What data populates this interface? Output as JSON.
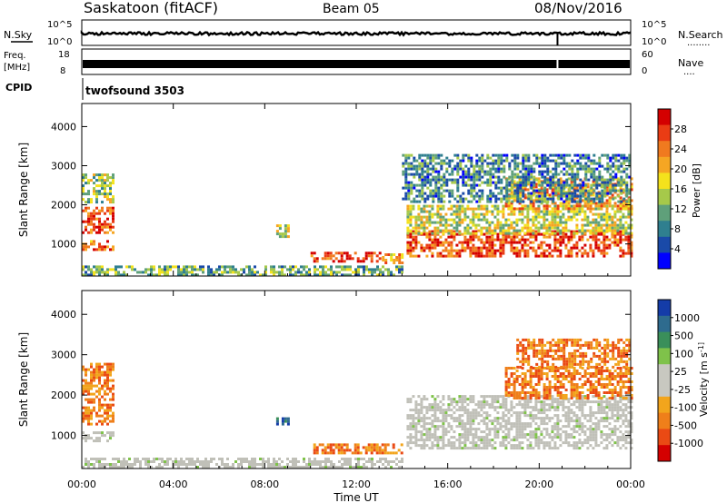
{
  "header": {
    "station": "Saskatoon (fitACF)",
    "beam": "Beam 05",
    "date": "08/Nov/2016"
  },
  "strips": {
    "noise": {
      "left_label": "N.Sky",
      "right_label": "N.Search",
      "left_ticks": [
        "10^5",
        "10^0"
      ],
      "right_ticks": [
        "10^5",
        "10^0"
      ],
      "right_legend": "........"
    },
    "freq": {
      "left_label_1": "Freq.",
      "left_label_2": "[MHz]",
      "right_label": "Nave",
      "left_ticks": [
        "18",
        "8"
      ],
      "right_ticks": [
        "60",
        "0"
      ],
      "right_legend": "...."
    },
    "cpid": {
      "label": "CPID",
      "text": "twofsound 3503"
    }
  },
  "colors": {
    "power_scale": [
      "#0000ff",
      "#1a4aa8",
      "#2f7f8f",
      "#5fa07a",
      "#a6c94a",
      "#f4e21c",
      "#f5a623",
      "#f07a1f",
      "#ea3c14",
      "#d40000"
    ],
    "velocity_scale": [
      "#143ca8",
      "#2e6b8e",
      "#3a8f5a",
      "#7fc24a",
      "#c8c8c0",
      "#c8c8c0",
      "#f2a51c",
      "#ef7f1a",
      "#ea4a14",
      "#d40000"
    ],
    "ground_scatter": "#c0c0b8"
  },
  "chart_data": [
    {
      "type": "heatmap",
      "title": "Power",
      "xlabel": "Time UT",
      "ylabel": "Slant Range [km]",
      "colorbar_label": "Power [dB]",
      "colorbar_ticks": [
        "28",
        "24",
        "20",
        "16",
        "12",
        "8",
        "4"
      ],
      "colorbar_range": [
        0,
        30
      ],
      "x_ticks": [
        "00:00",
        "04:00",
        "08:00",
        "12:00",
        "16:00",
        "20:00",
        "00:00"
      ],
      "xlim_hours": [
        0,
        24
      ],
      "y_ticks": [
        "4000",
        "3000",
        "2000",
        "1000"
      ],
      "ylim_km": [
        180,
        4590
      ],
      "regions": [
        {
          "t": [
            0.0,
            1.4
          ],
          "r": [
            1300,
            1950
          ],
          "level": 0.85
        },
        {
          "t": [
            0.0,
            1.4
          ],
          "r": [
            850,
            1100
          ],
          "level": 0.8
        },
        {
          "t": [
            0.0,
            1.4
          ],
          "r": [
            2100,
            2800
          ],
          "level": 0.45
        },
        {
          "t": [
            0.0,
            14.0
          ],
          "r": [
            200,
            450
          ],
          "level": 0.35
        },
        {
          "t": [
            8.5,
            9.0
          ],
          "r": [
            1200,
            1500
          ],
          "level": 0.5
        },
        {
          "t": [
            10.0,
            13.0
          ],
          "r": [
            560,
            800
          ],
          "level": 0.9
        },
        {
          "t": [
            13.0,
            14.0
          ],
          "r": [
            520,
            760
          ],
          "level": 0.7
        },
        {
          "t": [
            14.2,
            24.0
          ],
          "r": [
            700,
            1350
          ],
          "level": 0.85
        },
        {
          "t": [
            14.2,
            24.0
          ],
          "r": [
            1300,
            2000
          ],
          "level": 0.5
        },
        {
          "t": [
            18.5,
            24.0
          ],
          "r": [
            1900,
            2700
          ],
          "level": 0.7
        },
        {
          "t": [
            14.0,
            24.0
          ],
          "r": [
            2100,
            3300
          ],
          "level": 0.25
        }
      ]
    },
    {
      "type": "heatmap",
      "title": "Velocity",
      "xlabel": "Time UT",
      "ylabel": "Slant Range [km]",
      "colorbar_label": "Velocity [m s^-1]",
      "colorbar_ticks": [
        "1000",
        "500",
        "100",
        "25",
        "-25",
        "-100",
        "-500",
        "-1000"
      ],
      "colorbar_range": [
        -1000,
        1000
      ],
      "x_ticks": [
        "00:00",
        "04:00",
        "08:00",
        "12:00",
        "16:00",
        "20:00",
        "00:00"
      ],
      "xlim_hours": [
        0,
        24
      ],
      "y_ticks": [
        "4000",
        "3000",
        "2000",
        "1000"
      ],
      "ylim_km": [
        180,
        4590
      ],
      "regions": [
        {
          "t": [
            0.0,
            1.4
          ],
          "r": [
            1300,
            2800
          ],
          "class": "negative"
        },
        {
          "t": [
            0.0,
            1.4
          ],
          "r": [
            850,
            1100
          ],
          "class": "ground"
        },
        {
          "t": [
            0.0,
            14.0
          ],
          "r": [
            200,
            450
          ],
          "class": "ground"
        },
        {
          "t": [
            8.5,
            9.0
          ],
          "r": [
            1250,
            1450
          ],
          "class": "positive"
        },
        {
          "t": [
            10.0,
            14.0
          ],
          "r": [
            560,
            800
          ],
          "class": "negative"
        },
        {
          "t": [
            14.2,
            24.0
          ],
          "r": [
            650,
            2000
          ],
          "class": "ground"
        },
        {
          "t": [
            18.5,
            24.0
          ],
          "r": [
            1900,
            2700
          ],
          "class": "negative"
        },
        {
          "t": [
            19.0,
            24.0
          ],
          "r": [
            2700,
            3400
          ],
          "class": "negative"
        }
      ]
    }
  ]
}
